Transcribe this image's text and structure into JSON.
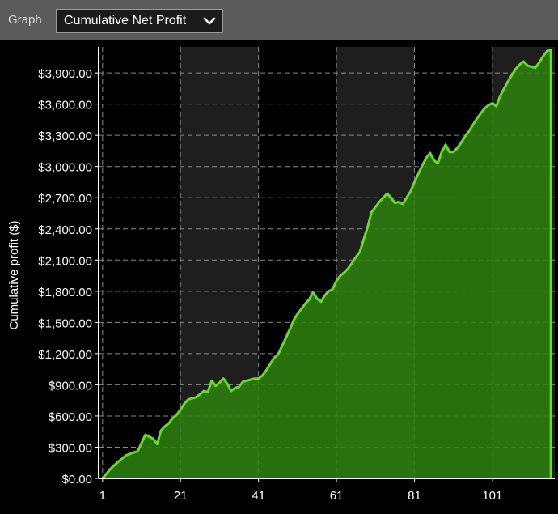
{
  "toolbar": {
    "label": "Graph",
    "selected": "Cumulative Net Profit"
  },
  "colors": {
    "background": "#000000",
    "band": "#1e1e1e",
    "grid": "#8a8a8a",
    "line": "#66dd22",
    "fill": "#2e7f10",
    "axis": "#ffffff"
  },
  "chart_data": {
    "type": "area",
    "title": "",
    "xlabel": "",
    "ylabel": "Cumulative profit ($)",
    "xlim": [
      0,
      117
    ],
    "ylim": [
      0,
      4150
    ],
    "x_ticks": [
      1,
      21,
      41,
      61,
      81,
      101
    ],
    "x_tick_labels": [
      "1",
      "21",
      "41",
      "61",
      "81",
      "101"
    ],
    "y_ticks": [
      0,
      300,
      600,
      900,
      1200,
      1500,
      1800,
      2100,
      2400,
      2700,
      3000,
      3300,
      3600,
      3900
    ],
    "y_tick_labels": [
      "$0.00",
      "$300.00",
      "$600.00",
      "$900.00",
      "$1,200.00",
      "$1,500.00",
      "$1,800.00",
      "$2,100.00",
      "$2,400.00",
      "$2,700.00",
      "$3,000.00",
      "$3,300.00",
      "$3,600.00",
      "$3,900.00"
    ],
    "grid": true,
    "alternating_bands": true,
    "series": [
      {
        "x": [
          1,
          3,
          5,
          7,
          9,
          10,
          11,
          12,
          13,
          14,
          15,
          16,
          17,
          18,
          19,
          20,
          21,
          22,
          23,
          24,
          25,
          26,
          27,
          28,
          29,
          30,
          31,
          32,
          33,
          34,
          35,
          36,
          37,
          38,
          39,
          40,
          41,
          42,
          43,
          44,
          45,
          46,
          47,
          48,
          49,
          50,
          51,
          52,
          53,
          54,
          55,
          56,
          57,
          58,
          59,
          60,
          61,
          62,
          63,
          64,
          65,
          66,
          67,
          68,
          69,
          70,
          71,
          72,
          73,
          74,
          75,
          76,
          77,
          78,
          79,
          80,
          81,
          82,
          83,
          84,
          85,
          86,
          87,
          88,
          89,
          90,
          91,
          92,
          93,
          94,
          95,
          96,
          97,
          98,
          99,
          100,
          101,
          102,
          103,
          104,
          105,
          106,
          107,
          108,
          109,
          110,
          111,
          112,
          113,
          114,
          115,
          116
        ],
        "y": [
          0,
          90,
          160,
          220,
          250,
          260,
          340,
          420,
          400,
          380,
          330,
          460,
          500,
          530,
          580,
          610,
          660,
          720,
          760,
          770,
          780,
          810,
          840,
          830,
          940,
          890,
          920,
          960,
          910,
          840,
          870,
          880,
          930,
          940,
          950,
          960,
          960,
          990,
          1040,
          1100,
          1160,
          1190,
          1270,
          1350,
          1430,
          1520,
          1580,
          1630,
          1680,
          1720,
          1790,
          1730,
          1700,
          1760,
          1800,
          1820,
          1900,
          1950,
          1980,
          2020,
          2070,
          2130,
          2180,
          2300,
          2420,
          2560,
          2610,
          2660,
          2700,
          2740,
          2700,
          2650,
          2660,
          2640,
          2700,
          2760,
          2850,
          2930,
          3010,
          3080,
          3130,
          3060,
          3030,
          3140,
          3210,
          3140,
          3140,
          3180,
          3230,
          3290,
          3340,
          3400,
          3460,
          3510,
          3560,
          3590,
          3610,
          3580,
          3680,
          3750,
          3820,
          3880,
          3940,
          3980,
          4010,
          3970,
          3960,
          3950,
          4000,
          4060,
          4110,
          4120
        ]
      }
    ]
  }
}
